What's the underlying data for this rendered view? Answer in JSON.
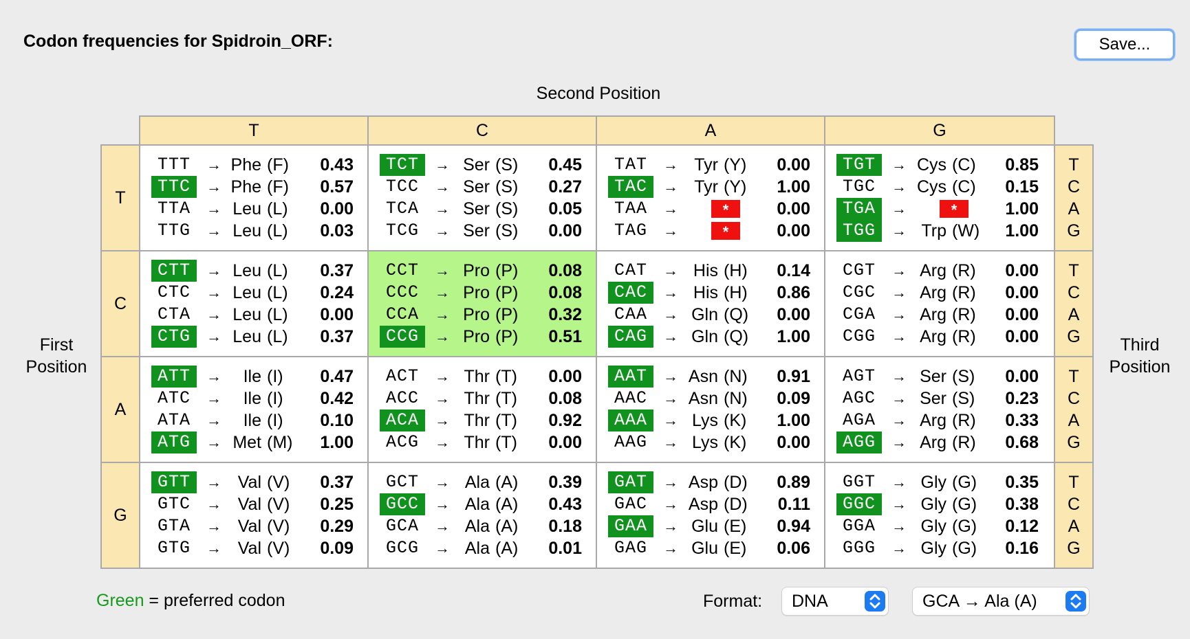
{
  "title": "Codon frequencies for Spidroin_ORF:",
  "save_label": "Save...",
  "second_position": "Second Position",
  "first_position_l1": "First",
  "first_position_l2": "Position",
  "third_position_l1": "Third",
  "third_position_l2": "Position",
  "columns": [
    "T",
    "C",
    "A",
    "G"
  ],
  "rows": [
    "T",
    "C",
    "A",
    "G"
  ],
  "third": [
    "T",
    "C",
    "A",
    "G"
  ],
  "arrow": "→",
  "stop_symbol": "*",
  "colors": {
    "preferred": "#11911e",
    "highlight": "#b5f58a",
    "stop": "#ef1010",
    "header": "#fbe7b1"
  },
  "highlighted_cell": "CC",
  "cells": [
    [
      [
        [
          "TTT",
          "Phe",
          "(F)",
          "0.43",
          false
        ],
        [
          "TTC",
          "Phe",
          "(F)",
          "0.57",
          true
        ],
        [
          "TTA",
          "Leu",
          "(L)",
          "0.00",
          false
        ],
        [
          "TTG",
          "Leu",
          "(L)",
          "0.03",
          false
        ]
      ],
      [
        [
          "TCT",
          "Ser",
          "(S)",
          "0.45",
          true
        ],
        [
          "TCC",
          "Ser",
          "(S)",
          "0.27",
          false
        ],
        [
          "TCA",
          "Ser",
          "(S)",
          "0.05",
          false
        ],
        [
          "TCG",
          "Ser",
          "(S)",
          "0.00",
          false
        ]
      ],
      [
        [
          "TAT",
          "Tyr",
          "(Y)",
          "0.00",
          false
        ],
        [
          "TAC",
          "Tyr",
          "(Y)",
          "1.00",
          true
        ],
        [
          "TAA",
          "*",
          "",
          "0.00",
          false
        ],
        [
          "TAG",
          "*",
          "",
          "0.00",
          false
        ]
      ],
      [
        [
          "TGT",
          "Cys",
          "(C)",
          "0.85",
          true
        ],
        [
          "TGC",
          "Cys",
          "(C)",
          "0.15",
          false
        ],
        [
          "TGA",
          "*",
          "",
          "1.00",
          true
        ],
        [
          "TGG",
          "Trp",
          "(W)",
          "1.00",
          true
        ]
      ]
    ],
    [
      [
        [
          "CTT",
          "Leu",
          "(L)",
          "0.37",
          true
        ],
        [
          "CTC",
          "Leu",
          "(L)",
          "0.24",
          false
        ],
        [
          "CTA",
          "Leu",
          "(L)",
          "0.00",
          false
        ],
        [
          "CTG",
          "Leu",
          "(L)",
          "0.37",
          true
        ]
      ],
      [
        [
          "CCT",
          "Pro",
          "(P)",
          "0.08",
          false
        ],
        [
          "CCC",
          "Pro",
          "(P)",
          "0.08",
          false
        ],
        [
          "CCA",
          "Pro",
          "(P)",
          "0.32",
          false
        ],
        [
          "CCG",
          "Pro",
          "(P)",
          "0.51",
          true
        ]
      ],
      [
        [
          "CAT",
          "His",
          "(H)",
          "0.14",
          false
        ],
        [
          "CAC",
          "His",
          "(H)",
          "0.86",
          true
        ],
        [
          "CAA",
          "Gln",
          "(Q)",
          "0.00",
          false
        ],
        [
          "CAG",
          "Gln",
          "(Q)",
          "1.00",
          true
        ]
      ],
      [
        [
          "CGT",
          "Arg",
          "(R)",
          "0.00",
          false
        ],
        [
          "CGC",
          "Arg",
          "(R)",
          "0.00",
          false
        ],
        [
          "CGA",
          "Arg",
          "(R)",
          "0.00",
          false
        ],
        [
          "CGG",
          "Arg",
          "(R)",
          "0.00",
          false
        ]
      ]
    ],
    [
      [
        [
          "ATT",
          "Ile",
          "(I)",
          "0.47",
          true
        ],
        [
          "ATC",
          "Ile",
          "(I)",
          "0.42",
          false
        ],
        [
          "ATA",
          "Ile",
          "(I)",
          "0.10",
          false
        ],
        [
          "ATG",
          "Met",
          "(M)",
          "1.00",
          true
        ]
      ],
      [
        [
          "ACT",
          "Thr",
          "(T)",
          "0.00",
          false
        ],
        [
          "ACC",
          "Thr",
          "(T)",
          "0.08",
          false
        ],
        [
          "ACA",
          "Thr",
          "(T)",
          "0.92",
          true
        ],
        [
          "ACG",
          "Thr",
          "(T)",
          "0.00",
          false
        ]
      ],
      [
        [
          "AAT",
          "Asn",
          "(N)",
          "0.91",
          true
        ],
        [
          "AAC",
          "Asn",
          "(N)",
          "0.09",
          false
        ],
        [
          "AAA",
          "Lys",
          "(K)",
          "1.00",
          true
        ],
        [
          "AAG",
          "Lys",
          "(K)",
          "0.00",
          false
        ]
      ],
      [
        [
          "AGT",
          "Ser",
          "(S)",
          "0.00",
          false
        ],
        [
          "AGC",
          "Ser",
          "(S)",
          "0.23",
          false
        ],
        [
          "AGA",
          "Arg",
          "(R)",
          "0.33",
          false
        ],
        [
          "AGG",
          "Arg",
          "(R)",
          "0.68",
          true
        ]
      ]
    ],
    [
      [
        [
          "GTT",
          "Val",
          "(V)",
          "0.37",
          true
        ],
        [
          "GTC",
          "Val",
          "(V)",
          "0.25",
          false
        ],
        [
          "GTA",
          "Val",
          "(V)",
          "0.29",
          false
        ],
        [
          "GTG",
          "Val",
          "(V)",
          "0.09",
          false
        ]
      ],
      [
        [
          "GCT",
          "Ala",
          "(A)",
          "0.39",
          false
        ],
        [
          "GCC",
          "Ala",
          "(A)",
          "0.43",
          true
        ],
        [
          "GCA",
          "Ala",
          "(A)",
          "0.18",
          false
        ],
        [
          "GCG",
          "Ala",
          "(A)",
          "0.01",
          false
        ]
      ],
      [
        [
          "GAT",
          "Asp",
          "(D)",
          "0.89",
          true
        ],
        [
          "GAC",
          "Asp",
          "(D)",
          "0.11",
          false
        ],
        [
          "GAA",
          "Glu",
          "(E)",
          "0.94",
          true
        ],
        [
          "GAG",
          "Glu",
          "(E)",
          "0.06",
          false
        ]
      ],
      [
        [
          "GGT",
          "Gly",
          "(G)",
          "0.35",
          false
        ],
        [
          "GGC",
          "Gly",
          "(G)",
          "0.38",
          true
        ],
        [
          "GGA",
          "Gly",
          "(G)",
          "0.12",
          false
        ],
        [
          "GGG",
          "Gly",
          "(G)",
          "0.16",
          false
        ]
      ]
    ]
  ],
  "legend": {
    "green": "Green",
    "rest": " = preferred codon"
  },
  "format_label": "Format:",
  "format_value": "DNA",
  "display_value": "GCA → Ala  (A)",
  "stepper_icon": "up-down-chevron-icon"
}
